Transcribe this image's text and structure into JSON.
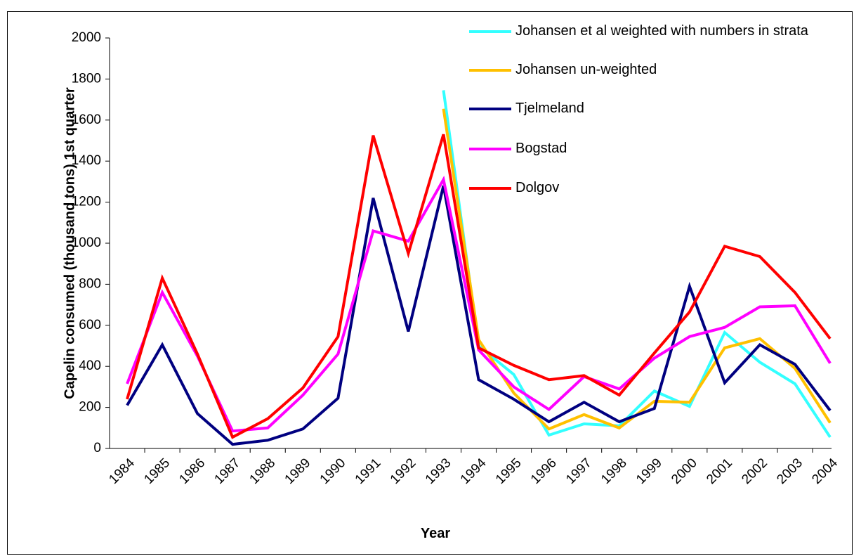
{
  "chart_data": {
    "type": "line",
    "x_label": "Year",
    "y_label": "Capelin consumed (thousand tons) 1st quarter",
    "categories": [
      "1984",
      "1985",
      "1986",
      "1987",
      "1988",
      "1989",
      "1990",
      "1991",
      "1992",
      "1993",
      "1994",
      "1995",
      "1996",
      "1997",
      "1998",
      "1999",
      "2000",
      "2001",
      "2002",
      "2003",
      "2004"
    ],
    "series": [
      {
        "name": "Johansen et al  weighted with numbers in strata",
        "color": "#33ffff",
        "values": [
          null,
          null,
          null,
          null,
          null,
          null,
          null,
          null,
          null,
          1745,
          500,
          360,
          65,
          120,
          110,
          280,
          205,
          565,
          420,
          315,
          55
        ]
      },
      {
        "name": "Johansen un-weighted",
        "color": "#ffc000",
        "values": [
          null,
          null,
          null,
          null,
          null,
          null,
          null,
          null,
          null,
          1655,
          530,
          270,
          95,
          165,
          100,
          230,
          225,
          490,
          535,
          390,
          125
        ]
      },
      {
        "name": "Tjelmeland",
        "color": "#000080",
        "values": [
          210,
          505,
          170,
          20,
          40,
          95,
          245,
          1220,
          570,
          1280,
          335,
          240,
          130,
          225,
          130,
          195,
          790,
          320,
          505,
          410,
          185
        ]
      },
      {
        "name": "Bogstad",
        "color": "#ff00ff",
        "values": [
          315,
          760,
          450,
          85,
          100,
          260,
          460,
          1060,
          1010,
          1310,
          480,
          300,
          190,
          350,
          290,
          440,
          545,
          590,
          690,
          695,
          415
        ]
      },
      {
        "name": "Dolgov",
        "color": "#ff0000",
        "values": [
          240,
          830,
          460,
          55,
          145,
          295,
          545,
          1525,
          950,
          1530,
          490,
          405,
          335,
          355,
          260,
          465,
          665,
          985,
          935,
          760,
          535
        ]
      }
    ],
    "ylim": [
      0,
      2000
    ],
    "yticks": [
      0,
      200,
      400,
      600,
      800,
      1000,
      1200,
      1400,
      1600,
      1800,
      2000
    ],
    "legend": "top-right"
  }
}
